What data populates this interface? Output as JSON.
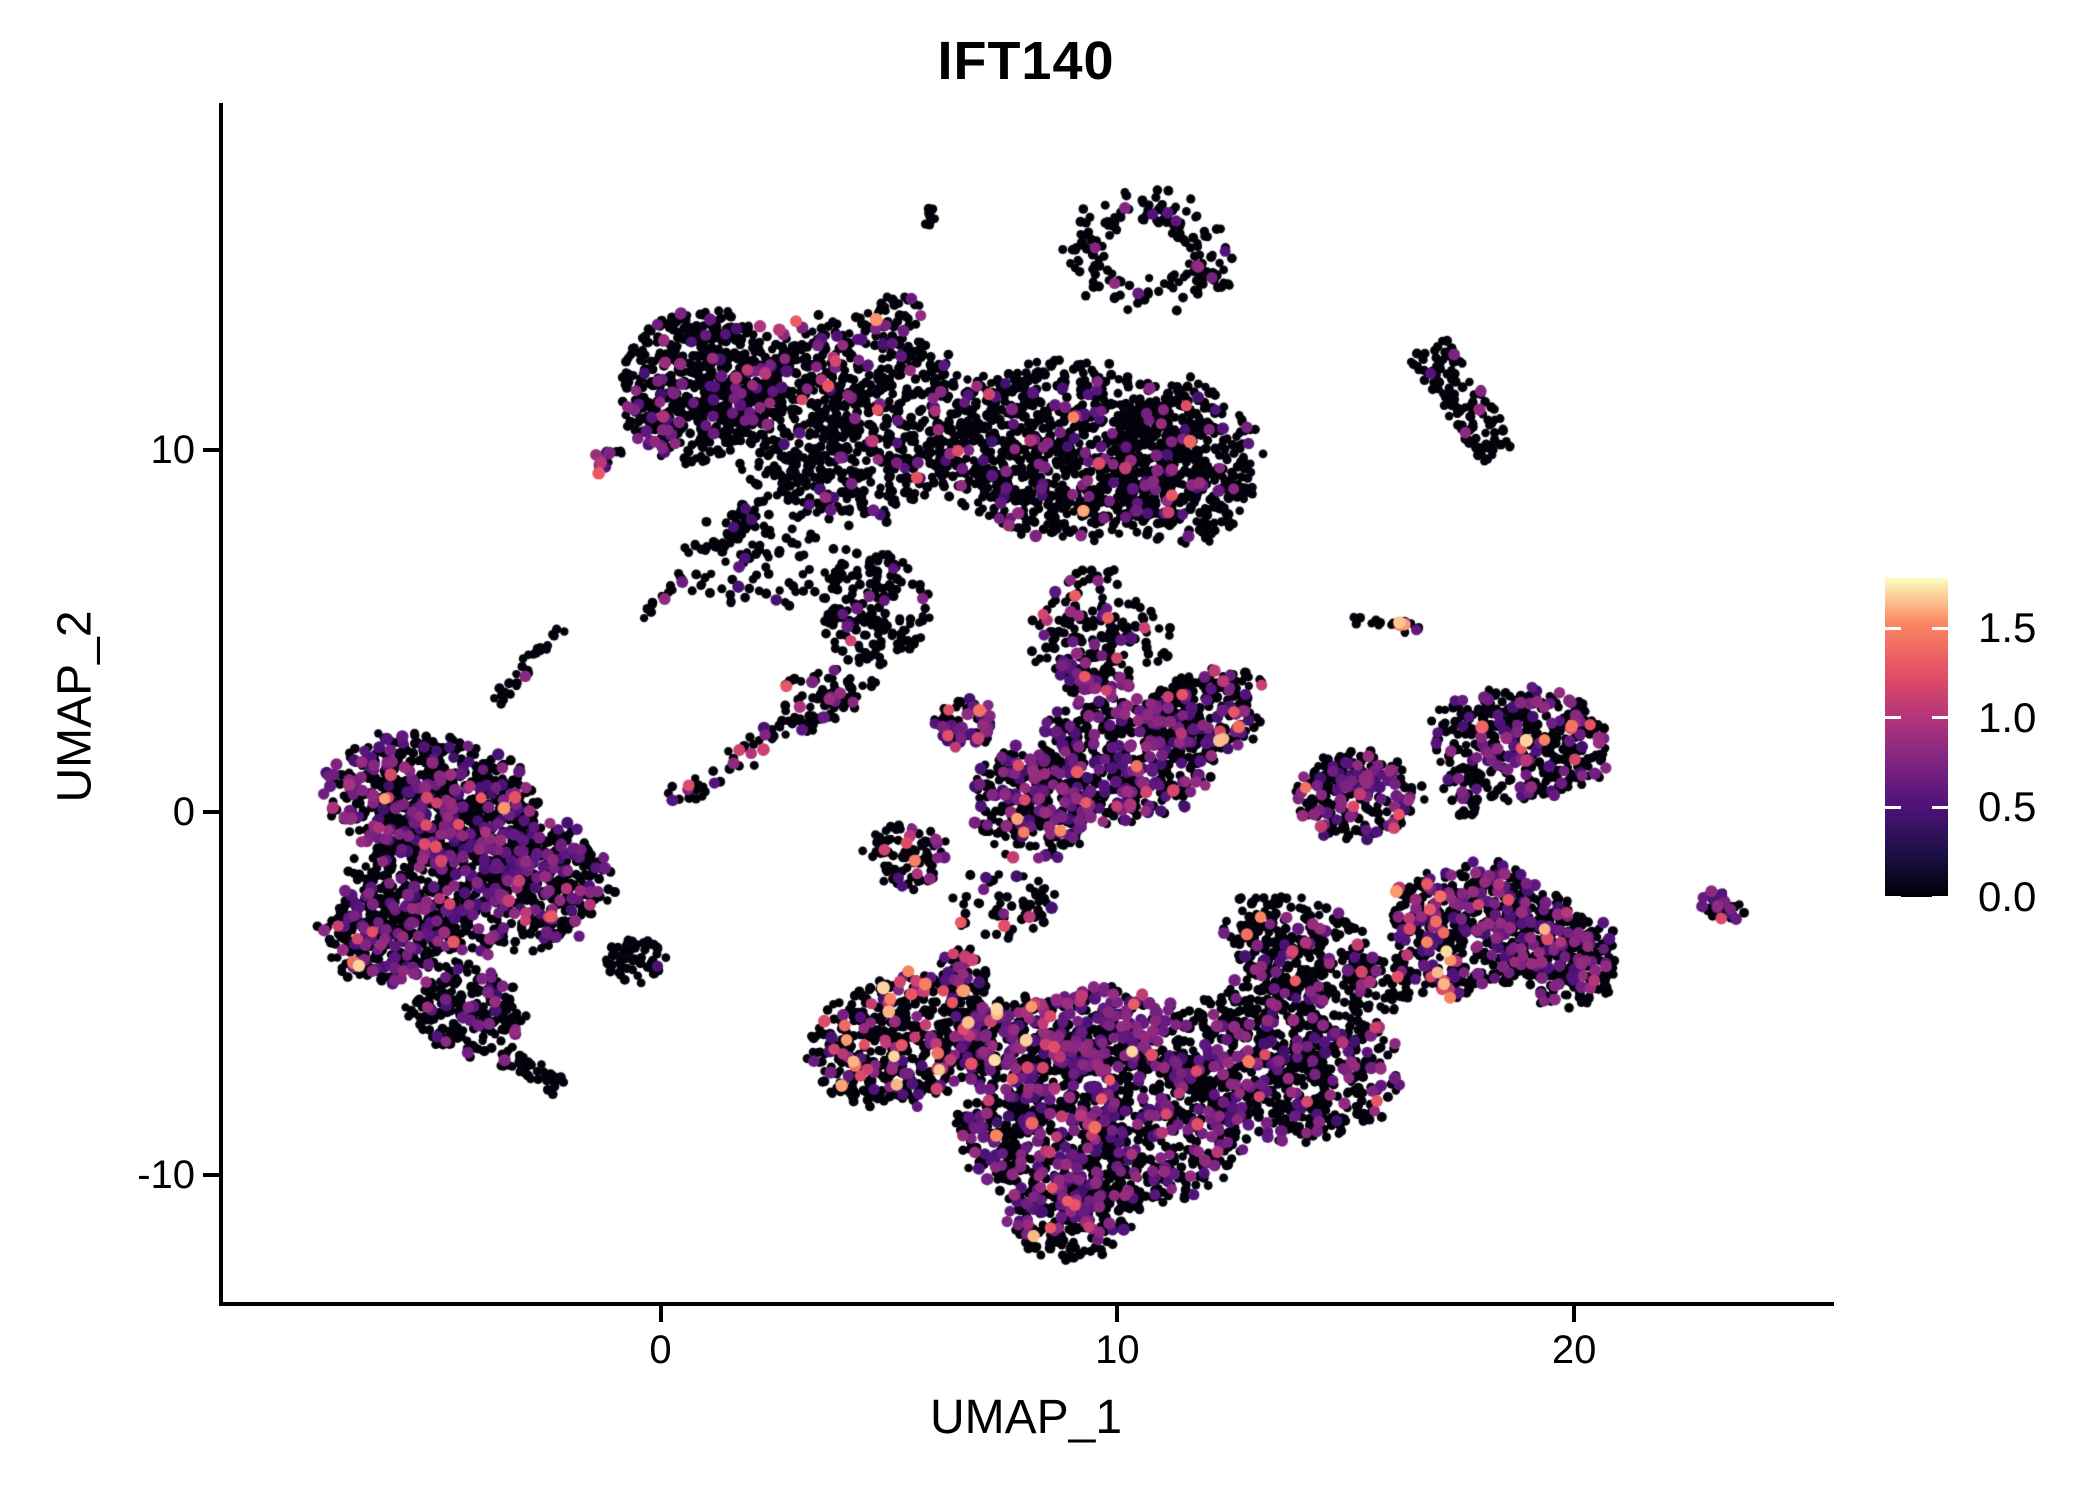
{
  "chart_data": {
    "type": "scatter",
    "title": "IFT140",
    "xlabel": "UMAP_1",
    "ylabel": "UMAP_2",
    "xlim": [
      -9.6,
      25.6
    ],
    "ylim": [
      -13.5,
      19.5
    ],
    "x_ticks": [
      0,
      10,
      20
    ],
    "y_ticks": [
      10,
      0,
      -10
    ],
    "grid": false,
    "legend_position": "right",
    "colorbar": {
      "title": "",
      "ticks": [
        1.5,
        1.0,
        0.5,
        0.0
      ],
      "tick_labels": [
        "1.5",
        "1.0",
        "0.5",
        "0.0"
      ],
      "max": 1.78,
      "colormap": "magma"
    },
    "colormap_stops": [
      [
        0.0,
        "#000004"
      ],
      [
        0.14,
        "#1d1147"
      ],
      [
        0.29,
        "#51127c"
      ],
      [
        0.43,
        "#822681"
      ],
      [
        0.57,
        "#b63679"
      ],
      [
        0.71,
        "#e65164"
      ],
      [
        0.86,
        "#fb8861"
      ],
      [
        1.0,
        "#fcfdbf"
      ]
    ],
    "expression_classes": {
      "names": [
        "zero",
        "low",
        "mid",
        "high"
      ],
      "value_ranges": [
        [
          0.0,
          0.04
        ],
        [
          0.42,
          0.88
        ],
        [
          0.95,
          1.32
        ],
        [
          1.35,
          1.72
        ]
      ]
    },
    "clusters": [
      {
        "id": "tiny-top-a",
        "t": "b",
        "x": 5.89,
        "y": 16.36,
        "rx": 0.16,
        "ry": 0.34,
        "rot": 0,
        "n": 10,
        "mix": [
          0.88,
          0.12,
          0,
          0
        ]
      },
      {
        "id": "potato-c",
        "t": "b",
        "x": 5.19,
        "y": 13.66,
        "rx": 0.58,
        "ry": 0.72,
        "rot": 0,
        "n": 34,
        "mix": [
          0.85,
          0.11,
          0,
          0.04
        ]
      },
      {
        "id": "ring-d",
        "t": "r",
        "x": 10.59,
        "y": 15.45,
        "rx": 1.75,
        "ry": 1.63,
        "rot": 0,
        "inner": 0.5,
        "n": 150,
        "mix": [
          0.93,
          0.07,
          0,
          0
        ]
      },
      {
        "id": "ring-d-tail",
        "t": "l",
        "x": 11.5,
        "y": 15.18,
        "x2": 12.5,
        "y2": 14.41,
        "w": 0.15,
        "n": 18,
        "mix": [
          0.8,
          0.14,
          0.06,
          0
        ]
      },
      {
        "id": "snake-l",
        "t": "l",
        "x": 16.76,
        "y": 12.81,
        "x2": 18.4,
        "y2": 9.86,
        "w": 0.5,
        "n": 130,
        "mix": [
          0.96,
          0.04,
          0,
          0
        ]
      },
      {
        "id": "m-tail",
        "t": "l",
        "x": 15.16,
        "y": 5.32,
        "x2": 16.1,
        "y2": 5.18,
        "w": 0.12,
        "n": 10,
        "mix": [
          1,
          0,
          0,
          0
        ]
      },
      {
        "id": "m-head",
        "t": "b",
        "x": 16.39,
        "y": 5.21,
        "rx": 0.26,
        "ry": 0.3,
        "rot": 0,
        "n": 12,
        "mix": [
          0.45,
          0.3,
          0.1,
          0.15
        ]
      },
      {
        "id": "top-left-lobe",
        "t": "b",
        "x": 0.9,
        "y": 11.79,
        "rx": 1.75,
        "ry": 2.07,
        "rot": 0,
        "n": 600,
        "mix": [
          0.92,
          0.07,
          0.01,
          0
        ]
      },
      {
        "id": "top-mid-lobe",
        "t": "b",
        "x": 4.18,
        "y": 10.83,
        "rx": 2.63,
        "ry": 2.75,
        "rot": 0,
        "n": 850,
        "mix": [
          0.91,
          0.08,
          0.01,
          0
        ]
      },
      {
        "id": "top-right-lobe",
        "t": "b",
        "x": 8.77,
        "y": 10.0,
        "rx": 2.63,
        "ry": 2.34,
        "rot": 0,
        "n": 850,
        "mix": [
          0.89,
          0.1,
          0.008,
          0.002
        ]
      },
      {
        "id": "top-far-right-lobe",
        "t": "b",
        "x": 11.4,
        "y": 9.59,
        "rx": 1.64,
        "ry": 2.2,
        "rot": 0,
        "n": 480,
        "mix": [
          0.9,
          0.095,
          0.005,
          0
        ]
      },
      {
        "id": "top-neck",
        "t": "b",
        "x": 4.62,
        "y": 5.59,
        "rx": 1.2,
        "ry": 1.65,
        "rot": 0,
        "n": 160,
        "mix": [
          0.93,
          0.06,
          0.01,
          0
        ]
      },
      {
        "id": "top-halo",
        "t": "b",
        "x": 2.21,
        "y": 6.97,
        "rx": 1.97,
        "ry": 1.38,
        "rot": 0,
        "n": 90,
        "mix": [
          0.93,
          0.07,
          0,
          0
        ]
      },
      {
        "id": "below-right-sparse",
        "t": "b",
        "x": 9.43,
        "y": 5.32,
        "rx": 1.0,
        "ry": 1.52,
        "rot": 0,
        "n": 80,
        "mix": [
          0.85,
          0.13,
          0.01,
          0.01
        ]
      },
      {
        "id": "purple-pocket",
        "t": "b",
        "x": 9.43,
        "y": 3.66,
        "rx": 0.77,
        "ry": 0.77,
        "rot": 0,
        "n": 60,
        "mix": [
          0.55,
          0.38,
          0.04,
          0.03
        ]
      },
      {
        "id": "streak-1",
        "t": "l",
        "x": 2.43,
        "y": 8.93,
        "x2": 1.07,
        "y2": 7.11,
        "w": 0.26,
        "n": 40,
        "mix": [
          0.9,
          0.05,
          0.02,
          0.03
        ]
      },
      {
        "id": "streak-2",
        "t": "l",
        "x": 0.9,
        "y": 6.97,
        "x2": -0.42,
        "y2": 5.37,
        "w": 0.1,
        "n": 14,
        "mix": [
          0.97,
          0.03,
          0,
          0
        ]
      },
      {
        "id": "streak-3",
        "t": "l",
        "x": -2.17,
        "y": 5.1,
        "x2": -3.65,
        "y2": 3.06,
        "w": 0.18,
        "n": 30,
        "mix": [
          0.9,
          0.1,
          0,
          0
        ]
      },
      {
        "id": "bridge-lower",
        "t": "l",
        "x": 0.2,
        "y": 0.22,
        "x2": 4.57,
        "y2": 3.77,
        "w": 0.35,
        "n": 70,
        "mix": [
          0.88,
          0.09,
          0.03,
          0
        ]
      },
      {
        "id": "bridge-blob",
        "t": "b",
        "x": 3.52,
        "y": 3.11,
        "rx": 0.88,
        "ry": 0.96,
        "rot": 0,
        "n": 60,
        "mix": [
          0.85,
          0.12,
          0.03,
          0
        ]
      },
      {
        "id": "left-lobe-top",
        "t": "b",
        "x": -5.01,
        "y": 0.36,
        "rx": 2.3,
        "ry": 1.71,
        "rot": -15,
        "n": 650,
        "mix": [
          0.78,
          0.2,
          0.015,
          0.005
        ]
      },
      {
        "id": "left-lobe-main",
        "t": "b",
        "x": -3.92,
        "y": -1.85,
        "rx": 2.74,
        "ry": 1.98,
        "rot": 0,
        "n": 850,
        "mix": [
          0.77,
          0.21,
          0.02,
          0
        ]
      },
      {
        "id": "left-lobe-west",
        "t": "b",
        "x": -6.0,
        "y": -3.36,
        "rx": 1.42,
        "ry": 1.32,
        "rot": 0,
        "n": 300,
        "mix": [
          0.82,
          0.17,
          0.01,
          0
        ]
      },
      {
        "id": "left-tail-wedge",
        "t": "b",
        "x": -4.25,
        "y": -5.43,
        "rx": 1.2,
        "ry": 1.24,
        "rot": 30,
        "n": 220,
        "mix": [
          0.85,
          0.14,
          0.01,
          0
        ]
      },
      {
        "id": "left-tail-streak",
        "t": "l",
        "x": -3.48,
        "y": -6.67,
        "x2": -2.21,
        "y2": -7.63,
        "w": 0.3,
        "n": 45,
        "mix": [
          0.9,
          0.09,
          0.01,
          0
        ]
      },
      {
        "id": "left-tiny-orange",
        "t": "b",
        "x": -6.72,
        "y": -4.19,
        "rx": 0.18,
        "ry": 0.18,
        "rot": 0,
        "n": 6,
        "mix": [
          0.5,
          0.2,
          0,
          0.3
        ]
      },
      {
        "id": "q-blob",
        "t": "b",
        "x": -0.57,
        "y": -4.1,
        "rx": 0.7,
        "ry": 0.61,
        "rot": 0,
        "n": 55,
        "mix": [
          0.96,
          0.04,
          0,
          0
        ]
      },
      {
        "id": "center-tip",
        "t": "b",
        "x": 6.65,
        "y": 2.51,
        "rx": 0.66,
        "ry": 0.72,
        "rot": 0,
        "n": 70,
        "mix": [
          0.55,
          0.35,
          0.08,
          0.02
        ]
      },
      {
        "id": "center-left",
        "t": "b",
        "x": 8.12,
        "y": 0.22,
        "rx": 1.31,
        "ry": 1.52,
        "rot": 20,
        "n": 300,
        "mix": [
          0.72,
          0.25,
          0.02,
          0.01
        ]
      },
      {
        "id": "center-mid",
        "t": "b",
        "x": 10.09,
        "y": 1.46,
        "rx": 1.86,
        "ry": 1.65,
        "rot": -20,
        "n": 450,
        "mix": [
          0.72,
          0.25,
          0.025,
          0.005
        ]
      },
      {
        "id": "center-right",
        "t": "b",
        "x": 11.84,
        "y": 2.62,
        "rx": 1.2,
        "ry": 1.24,
        "rot": -20,
        "n": 220,
        "mix": [
          0.75,
          0.22,
          0.02,
          0.01
        ]
      },
      {
        "id": "center-hook",
        "t": "l",
        "x": 11.07,
        "y": 3.44,
        "x2": 13.26,
        "y2": 3.72,
        "w": 0.2,
        "n": 35,
        "mix": [
          0.82,
          0.12,
          0.04,
          0.02
        ]
      },
      {
        "id": "center-upper-sparse",
        "t": "b",
        "x": 9.65,
        "y": 4.77,
        "rx": 1.75,
        "ry": 1.1,
        "rot": 0,
        "n": 90,
        "mix": [
          0.85,
          0.13,
          0.02,
          0
        ]
      },
      {
        "id": "center-lower-blob",
        "t": "b",
        "x": 5.38,
        "y": -1.16,
        "rx": 0.92,
        "ry": 0.91,
        "rot": 0,
        "n": 90,
        "mix": [
          0.88,
          0.09,
          0.02,
          0.01
        ]
      },
      {
        "id": "bottom-left-wing",
        "t": "b",
        "x": 5.38,
        "y": -6.25,
        "rx": 2.19,
        "ry": 1.65,
        "rot": 25,
        "n": 550,
        "mix": [
          0.84,
          0.1,
          0.045,
          0.015
        ]
      },
      {
        "id": "bottom-purple-band",
        "t": "b",
        "x": 8.77,
        "y": -6.12,
        "rx": 2.52,
        "ry": 1.16,
        "rot": 10,
        "n": 420,
        "mix": [
          0.55,
          0.4,
          0.04,
          0.01
        ]
      },
      {
        "id": "bottom-body",
        "t": "b",
        "x": 9.65,
        "y": -8.6,
        "rx": 3.06,
        "ry": 2.48,
        "rot": 0,
        "n": 1100,
        "mix": [
          0.74,
          0.23,
          0.02,
          0.01
        ]
      },
      {
        "id": "bottom-right-body",
        "t": "b",
        "x": 13.59,
        "y": -6.8,
        "rx": 2.52,
        "ry": 2.2,
        "rot": -20,
        "n": 750,
        "mix": [
          0.82,
          0.16,
          0.015,
          0.005
        ]
      },
      {
        "id": "bottom-arm",
        "t": "b",
        "x": 14.03,
        "y": -3.77,
        "rx": 1.86,
        "ry": 1.24,
        "rot": -35,
        "n": 300,
        "mix": [
          0.88,
          0.09,
          0.02,
          0.01
        ]
      },
      {
        "id": "bottom-tip",
        "t": "b",
        "x": 8.99,
        "y": -11.07,
        "rx": 1.42,
        "ry": 1.24,
        "rot": 20,
        "n": 220,
        "mix": [
          0.78,
          0.2,
          0.015,
          0.005
        ]
      },
      {
        "id": "mid-sparse-1",
        "t": "b",
        "x": 7.57,
        "y": -2.53,
        "rx": 1.09,
        "ry": 0.96,
        "rot": 0,
        "n": 60,
        "mix": [
          0.9,
          0.08,
          0.02,
          0
        ]
      },
      {
        "id": "mid-sparse-2",
        "t": "b",
        "x": 6.59,
        "y": -4.46,
        "rx": 0.55,
        "ry": 0.69,
        "rot": 0,
        "n": 40,
        "mix": [
          0.85,
          0.12,
          0.02,
          0.01
        ]
      },
      {
        "id": "right-mid-u",
        "t": "b",
        "x": 15.27,
        "y": 0.44,
        "rx": 1.36,
        "ry": 1.21,
        "rot": 0,
        "n": 230,
        "mix": [
          0.68,
          0.29,
          0.025,
          0.005
        ]
      },
      {
        "id": "right-v",
        "t": "b",
        "x": 18.84,
        "y": 1.9,
        "rx": 1.93,
        "ry": 1.52,
        "rot": -12,
        "n": 400,
        "mix": [
          0.74,
          0.22,
          0.025,
          0.015
        ]
      },
      {
        "id": "right-v-tail",
        "t": "b",
        "x": 17.57,
        "y": 0.58,
        "rx": 0.39,
        "ry": 0.77,
        "rot": 0,
        "n": 40,
        "mix": [
          0.9,
          0.1,
          0,
          0
        ]
      },
      {
        "id": "right-w-main",
        "t": "b",
        "x": 17.92,
        "y": -3.17,
        "rx": 1.93,
        "ry": 1.71,
        "rot": 0,
        "n": 480,
        "mix": [
          0.72,
          0.25,
          0.02,
          0.01
        ]
      },
      {
        "id": "right-w-east",
        "t": "b",
        "x": 19.82,
        "y": -4.05,
        "rx": 1.2,
        "ry": 1.32,
        "rot": 0,
        "n": 240,
        "mix": [
          0.78,
          0.2,
          0.015,
          0.005
        ]
      },
      {
        "id": "right-w-hotband",
        "t": "l",
        "x": 16.39,
        "y": -1.98,
        "x2": 17.42,
        "y2": -5.15,
        "w": 0.4,
        "n": 55,
        "mix": [
          0.5,
          0.2,
          0.18,
          0.12
        ]
      },
      {
        "id": "t-w-bridge",
        "t": "b",
        "x": 16.0,
        "y": -4.74,
        "rx": 0.77,
        "ry": 0.77,
        "rot": 0,
        "n": 45,
        "mix": [
          0.9,
          0.08,
          0.02,
          0
        ]
      },
      {
        "id": "far-right-x",
        "t": "b",
        "x": 23.17,
        "y": -2.53,
        "rx": 0.57,
        "ry": 0.39,
        "rot": -28,
        "n": 30,
        "mix": [
          0.72,
          0.25,
          0.03,
          0
        ]
      },
      {
        "id": "mini-e",
        "t": "b",
        "x": -1.27,
        "y": 9.67,
        "rx": 0.28,
        "ry": 0.36,
        "rot": 0,
        "n": 12,
        "mix": [
          0.25,
          0.35,
          0.05,
          0.35
        ]
      },
      {
        "id": "mini-f",
        "t": "b",
        "x": -0.07,
        "y": 10.25,
        "rx": 0.44,
        "ry": 0.36,
        "rot": 0,
        "n": 14,
        "mix": [
          0.3,
          0.7,
          0,
          0
        ]
      },
      {
        "id": "mini-strays",
        "t": "b",
        "x": -0.81,
        "y": 9.92,
        "rx": 0.2,
        "ry": 0.1,
        "rot": 0,
        "n": 3,
        "mix": [
          1,
          0,
          0,
          0
        ]
      }
    ]
  }
}
